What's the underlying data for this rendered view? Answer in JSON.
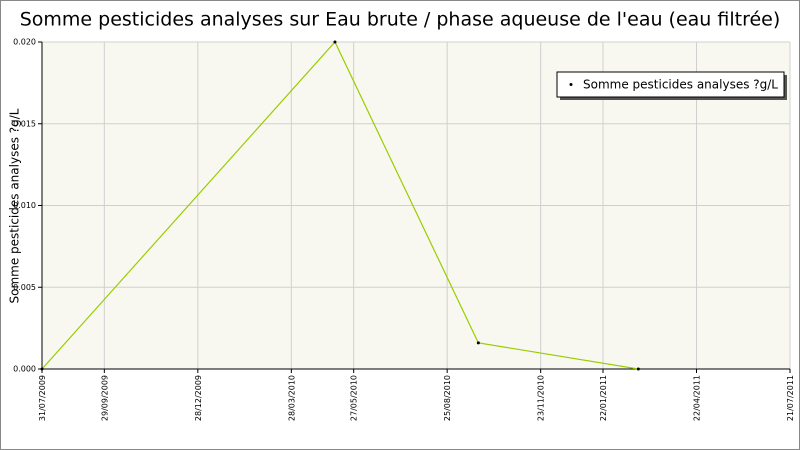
{
  "chart_data": {
    "type": "line",
    "title": "Somme pesticides analyses sur Eau brute / phase aqueuse de l'eau (eau filtrée)",
    "y_label": "Somme pesticides analyses ?g/L",
    "x": [
      "31/07/2009",
      "09/05/2010",
      "24/09/2010",
      "25/02/2011"
    ],
    "series": [
      {
        "name": "Somme pesticides analyses ?g/L",
        "color": "#99cc00",
        "values": [
          0.0,
          0.02,
          0.0016,
          0.0
        ]
      }
    ],
    "xlim": [
      "31/07/2009",
      "21/07/2011"
    ],
    "xticks": [
      "31/07/2009",
      "29/09/2009",
      "28/12/2009",
      "28/03/2010",
      "27/05/2010",
      "25/08/2010",
      "23/11/2010",
      "22/01/2011",
      "22/04/2011",
      "21/07/2011"
    ],
    "ylim": [
      0,
      0.02
    ],
    "yticks": [
      {
        "value": 0,
        "label": "0.000"
      },
      {
        "value": 0.005,
        "label": "0.005"
      },
      {
        "value": 0.01,
        "label": "0.010"
      },
      {
        "value": 0.015,
        "label": "0.015"
      },
      {
        "value": 0.02,
        "label": "0.020"
      }
    ],
    "grid": true,
    "legend": "top-right"
  }
}
